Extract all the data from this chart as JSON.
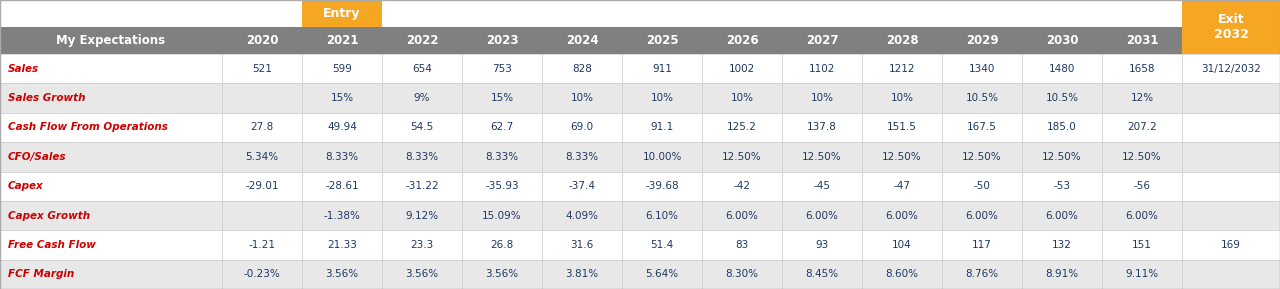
{
  "header_row": [
    "My Expectations",
    "2020",
    "2021",
    "2022",
    "2023",
    "2024",
    "2025",
    "2026",
    "2027",
    "2028",
    "2029",
    "2030",
    "2031"
  ],
  "entry_label": "Entry",
  "exit_label": "Exit\n2032",
  "rows": [
    {
      "label": "Sales",
      "values": [
        "521",
        "599",
        "654",
        "753",
        "828",
        "911",
        "1002",
        "1102",
        "1212",
        "1340",
        "1480",
        "1658"
      ],
      "exit_val": "31/12/2032"
    },
    {
      "label": "Sales Growth",
      "values": [
        "",
        "15%",
        "9%",
        "15%",
        "10%",
        "10%",
        "10%",
        "10%",
        "10%",
        "10.5%",
        "10.5%",
        "12%"
      ],
      "exit_val": ""
    },
    {
      "label": "Cash Flow From Operations",
      "values": [
        "27.8",
        "49.94",
        "54.5",
        "62.7",
        "69.0",
        "91.1",
        "125.2",
        "137.8",
        "151.5",
        "167.5",
        "185.0",
        "207.2"
      ],
      "exit_val": ""
    },
    {
      "label": "CFO/Sales",
      "values": [
        "5.34%",
        "8.33%",
        "8.33%",
        "8.33%",
        "8.33%",
        "10.00%",
        "12.50%",
        "12.50%",
        "12.50%",
        "12.50%",
        "12.50%",
        "12.50%"
      ],
      "exit_val": ""
    },
    {
      "label": "Capex",
      "values": [
        "-29.01",
        "-28.61",
        "-31.22",
        "-35.93",
        "-37.4",
        "-39.68",
        "-42",
        "-45",
        "-47",
        "-50",
        "-53",
        "-56"
      ],
      "exit_val": ""
    },
    {
      "label": "Capex Growth",
      "values": [
        "",
        "-1.38%",
        "9.12%",
        "15.09%",
        "4.09%",
        "6.10%",
        "6.00%",
        "6.00%",
        "6.00%",
        "6.00%",
        "6.00%",
        "6.00%"
      ],
      "exit_val": ""
    },
    {
      "label": "Free Cash Flow",
      "values": [
        "-1.21",
        "21.33",
        "23.3",
        "26.8",
        "31.6",
        "51.4",
        "83",
        "93",
        "104",
        "117",
        "132",
        "151"
      ],
      "exit_val": "169"
    },
    {
      "label": "FCF Margin",
      "values": [
        "-0.23%",
        "3.56%",
        "3.56%",
        "3.56%",
        "3.81%",
        "5.64%",
        "8.30%",
        "8.45%",
        "8.60%",
        "8.76%",
        "8.91%",
        "9.11%"
      ],
      "exit_val": ""
    }
  ],
  "header_bg": "#808080",
  "header_text_color": "#ffffff",
  "entry_bg": "#f5a623",
  "exit_bg": "#f5a623",
  "label_color": "#cc0000",
  "value_color": "#1f3864",
  "row_bg_odd": "#ffffff",
  "row_bg_even": "#e8e8e8",
  "fig_width": 12.8,
  "fig_height": 2.89,
  "dpi": 100
}
